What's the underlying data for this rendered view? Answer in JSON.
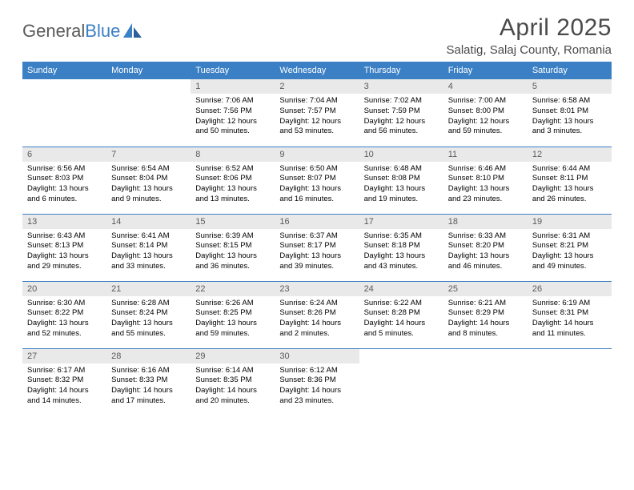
{
  "logo": {
    "text1": "General",
    "text2": "Blue"
  },
  "title": "April 2025",
  "location": "Salatig, Salaj County, Romania",
  "colors": {
    "header_blue": "#3b7fc4",
    "daynum_bg": "#e9e9e9",
    "text_gray": "#5a5a5a",
    "white": "#ffffff"
  },
  "day_headers": [
    "Sunday",
    "Monday",
    "Tuesday",
    "Wednesday",
    "Thursday",
    "Friday",
    "Saturday"
  ],
  "weeks": [
    [
      null,
      null,
      {
        "n": "1",
        "sunrise": "7:06 AM",
        "sunset": "7:56 PM",
        "daylight": "12 hours and 50 minutes."
      },
      {
        "n": "2",
        "sunrise": "7:04 AM",
        "sunset": "7:57 PM",
        "daylight": "12 hours and 53 minutes."
      },
      {
        "n": "3",
        "sunrise": "7:02 AM",
        "sunset": "7:59 PM",
        "daylight": "12 hours and 56 minutes."
      },
      {
        "n": "4",
        "sunrise": "7:00 AM",
        "sunset": "8:00 PM",
        "daylight": "12 hours and 59 minutes."
      },
      {
        "n": "5",
        "sunrise": "6:58 AM",
        "sunset": "8:01 PM",
        "daylight": "13 hours and 3 minutes."
      }
    ],
    [
      {
        "n": "6",
        "sunrise": "6:56 AM",
        "sunset": "8:03 PM",
        "daylight": "13 hours and 6 minutes."
      },
      {
        "n": "7",
        "sunrise": "6:54 AM",
        "sunset": "8:04 PM",
        "daylight": "13 hours and 9 minutes."
      },
      {
        "n": "8",
        "sunrise": "6:52 AM",
        "sunset": "8:06 PM",
        "daylight": "13 hours and 13 minutes."
      },
      {
        "n": "9",
        "sunrise": "6:50 AM",
        "sunset": "8:07 PM",
        "daylight": "13 hours and 16 minutes."
      },
      {
        "n": "10",
        "sunrise": "6:48 AM",
        "sunset": "8:08 PM",
        "daylight": "13 hours and 19 minutes."
      },
      {
        "n": "11",
        "sunrise": "6:46 AM",
        "sunset": "8:10 PM",
        "daylight": "13 hours and 23 minutes."
      },
      {
        "n": "12",
        "sunrise": "6:44 AM",
        "sunset": "8:11 PM",
        "daylight": "13 hours and 26 minutes."
      }
    ],
    [
      {
        "n": "13",
        "sunrise": "6:43 AM",
        "sunset": "8:13 PM",
        "daylight": "13 hours and 29 minutes."
      },
      {
        "n": "14",
        "sunrise": "6:41 AM",
        "sunset": "8:14 PM",
        "daylight": "13 hours and 33 minutes."
      },
      {
        "n": "15",
        "sunrise": "6:39 AM",
        "sunset": "8:15 PM",
        "daylight": "13 hours and 36 minutes."
      },
      {
        "n": "16",
        "sunrise": "6:37 AM",
        "sunset": "8:17 PM",
        "daylight": "13 hours and 39 minutes."
      },
      {
        "n": "17",
        "sunrise": "6:35 AM",
        "sunset": "8:18 PM",
        "daylight": "13 hours and 43 minutes."
      },
      {
        "n": "18",
        "sunrise": "6:33 AM",
        "sunset": "8:20 PM",
        "daylight": "13 hours and 46 minutes."
      },
      {
        "n": "19",
        "sunrise": "6:31 AM",
        "sunset": "8:21 PM",
        "daylight": "13 hours and 49 minutes."
      }
    ],
    [
      {
        "n": "20",
        "sunrise": "6:30 AM",
        "sunset": "8:22 PM",
        "daylight": "13 hours and 52 minutes."
      },
      {
        "n": "21",
        "sunrise": "6:28 AM",
        "sunset": "8:24 PM",
        "daylight": "13 hours and 55 minutes."
      },
      {
        "n": "22",
        "sunrise": "6:26 AM",
        "sunset": "8:25 PM",
        "daylight": "13 hours and 59 minutes."
      },
      {
        "n": "23",
        "sunrise": "6:24 AM",
        "sunset": "8:26 PM",
        "daylight": "14 hours and 2 minutes."
      },
      {
        "n": "24",
        "sunrise": "6:22 AM",
        "sunset": "8:28 PM",
        "daylight": "14 hours and 5 minutes."
      },
      {
        "n": "25",
        "sunrise": "6:21 AM",
        "sunset": "8:29 PM",
        "daylight": "14 hours and 8 minutes."
      },
      {
        "n": "26",
        "sunrise": "6:19 AM",
        "sunset": "8:31 PM",
        "daylight": "14 hours and 11 minutes."
      }
    ],
    [
      {
        "n": "27",
        "sunrise": "6:17 AM",
        "sunset": "8:32 PM",
        "daylight": "14 hours and 14 minutes."
      },
      {
        "n": "28",
        "sunrise": "6:16 AM",
        "sunset": "8:33 PM",
        "daylight": "14 hours and 17 minutes."
      },
      {
        "n": "29",
        "sunrise": "6:14 AM",
        "sunset": "8:35 PM",
        "daylight": "14 hours and 20 minutes."
      },
      {
        "n": "30",
        "sunrise": "6:12 AM",
        "sunset": "8:36 PM",
        "daylight": "14 hours and 23 minutes."
      },
      null,
      null,
      null
    ]
  ],
  "labels": {
    "sunrise": "Sunrise:",
    "sunset": "Sunset:",
    "daylight": "Daylight:"
  }
}
